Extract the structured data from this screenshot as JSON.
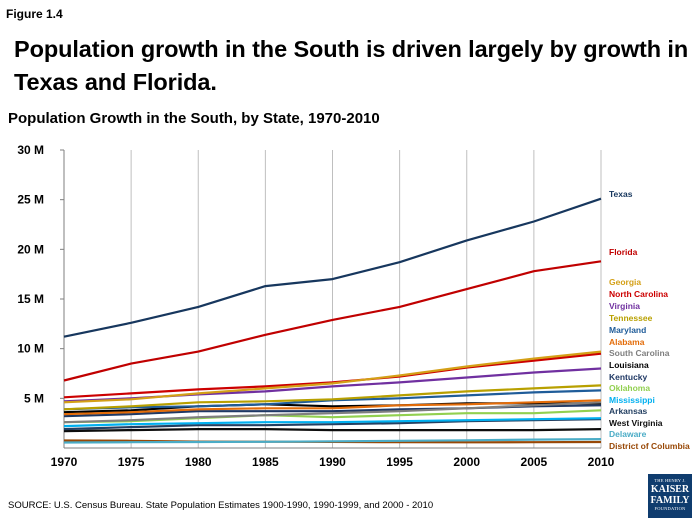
{
  "figure_label": "Figure 1.4",
  "headline": "Population growth in the South is driven largely by growth in Texas and Florida.",
  "subtitle": "Population Growth in the South, by State, 1970-2010",
  "source": "SOURCE: U.S. Census Bureau. State Population Estimates 1900-1990, 1990-1999, and 2000 - 2010",
  "logo": {
    "line1": "THE HENRY J.",
    "line2": "KAISER",
    "line3": "FAMILY",
    "line4": "FOUNDATION"
  },
  "chart_data": {
    "type": "line",
    "title": "Population Growth in the South, by State, 1970-2010",
    "x": [
      1970,
      1975,
      1980,
      1985,
      1990,
      1995,
      2000,
      2005,
      2010
    ],
    "ylim": [
      0,
      30000000
    ],
    "yticks": [
      {
        "value": 5000000,
        "label": "5 M"
      },
      {
        "value": 10000000,
        "label": "10 M"
      },
      {
        "value": 15000000,
        "label": "15 M"
      },
      {
        "value": 20000000,
        "label": "20 M"
      },
      {
        "value": 25000000,
        "label": "25 M"
      },
      {
        "value": 30000000,
        "label": "30 M"
      }
    ],
    "grid": "vertical",
    "legend": "right",
    "series": [
      {
        "name": "Texas",
        "color": "#17375e",
        "values": [
          11200000,
          12600000,
          14200000,
          16300000,
          17000000,
          18700000,
          20900000,
          22800000,
          25100000
        ]
      },
      {
        "name": "Florida",
        "color": "#c00000",
        "values": [
          6800000,
          8500000,
          9700000,
          11400000,
          12900000,
          14200000,
          16000000,
          17800000,
          18800000
        ]
      },
      {
        "name": "Georgia",
        "color": "#d4a017",
        "values": [
          4600000,
          4900000,
          5500000,
          6000000,
          6500000,
          7300000,
          8200000,
          9000000,
          9700000
        ]
      },
      {
        "name": "North Carolina",
        "color": "#cc0000",
        "values": [
          5100000,
          5500000,
          5900000,
          6200000,
          6600000,
          7200000,
          8100000,
          8800000,
          9500000
        ]
      },
      {
        "name": "Virginia",
        "color": "#7030a0",
        "values": [
          4700000,
          5000000,
          5400000,
          5700000,
          6200000,
          6600000,
          7100000,
          7600000,
          8000000
        ]
      },
      {
        "name": "Tennessee",
        "color": "#b8a000",
        "values": [
          3900000,
          4200000,
          4600000,
          4700000,
          4900000,
          5300000,
          5700000,
          6000000,
          6300000
        ]
      },
      {
        "name": "Maryland",
        "color": "#1f5c99",
        "values": [
          3900000,
          4100000,
          4200000,
          4400000,
          4800000,
          5000000,
          5300000,
          5600000,
          5800000
        ]
      },
      {
        "name": "Alabama",
        "color": "#e36c09",
        "values": [
          3400000,
          3600000,
          3900000,
          4000000,
          4000000,
          4300000,
          4400000,
          4600000,
          4800000
        ]
      },
      {
        "name": "South Carolina",
        "color": "#7f7f7f",
        "values": [
          2600000,
          2800000,
          3100000,
          3300000,
          3500000,
          3700000,
          4000000,
          4300000,
          4600000
        ]
      },
      {
        "name": "Louisiana",
        "color": "#000000",
        "values": [
          3600000,
          3800000,
          4200000,
          4400000,
          4200000,
          4300000,
          4500000,
          4500000,
          4500000
        ]
      },
      {
        "name": "Kentucky",
        "color": "#1f3864",
        "values": [
          3200000,
          3400000,
          3700000,
          3700000,
          3700000,
          3900000,
          4000000,
          4200000,
          4300000
        ]
      },
      {
        "name": "Oklahoma",
        "color": "#92d050",
        "values": [
          2600000,
          2700000,
          3000000,
          3300000,
          3100000,
          3300000,
          3500000,
          3500000,
          3800000
        ]
      },
      {
        "name": "Mississippi",
        "color": "#00b0f0",
        "values": [
          2200000,
          2400000,
          2500000,
          2600000,
          2600000,
          2700000,
          2800000,
          2900000,
          3000000
        ]
      },
      {
        "name": "Arkansas",
        "color": "#244062",
        "values": [
          1900000,
          2100000,
          2300000,
          2300000,
          2400000,
          2500000,
          2700000,
          2800000,
          2900000
        ]
      },
      {
        "name": "West Virginia",
        "color": "#0d0d0d",
        "values": [
          1700000,
          1800000,
          1900000,
          1900000,
          1800000,
          1800000,
          1800000,
          1800000,
          1900000
        ]
      },
      {
        "name": "Delaware",
        "color": "#4bacc6",
        "values": [
          550000,
          580000,
          600000,
          620000,
          670000,
          720000,
          780000,
          850000,
          900000
        ]
      },
      {
        "name": "District of Columbia",
        "color": "#984806",
        "values": [
          760000,
          720000,
          640000,
          630000,
          610000,
          580000,
          570000,
          580000,
          600000
        ]
      }
    ]
  }
}
